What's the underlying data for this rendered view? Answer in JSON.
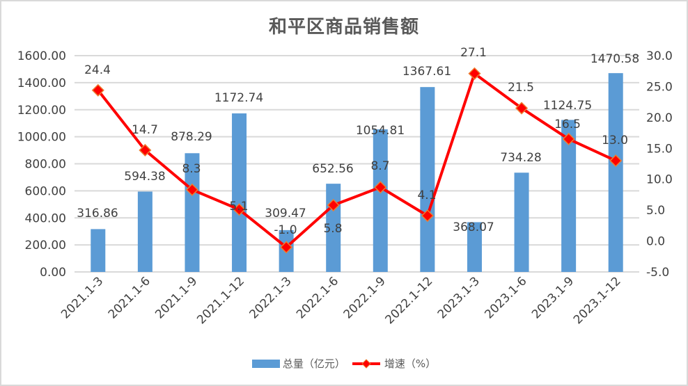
{
  "chart_data": {
    "type": "bar+line",
    "title": "和平区商品销售额",
    "categories": [
      "2021.1-3",
      "2021.1-6",
      "2021.1-9",
      "2021.1-12",
      "2022.1-3",
      "2022.1-6",
      "2022.1-9",
      "2022.1-12",
      "2023.1-3",
      "2023.1-6",
      "2023.1-9",
      "2023.1-12"
    ],
    "series": [
      {
        "name": "总量（亿元）",
        "type": "bar",
        "axis": "left",
        "color": "#5b9bd5",
        "values": [
          316.86,
          594.38,
          878.29,
          1172.74,
          309.47,
          652.56,
          1054.81,
          1367.61,
          368.07,
          734.28,
          1124.75,
          1470.58
        ],
        "labels": [
          "316.86",
          "594.38",
          "878.29",
          "1172.74",
          "309.47",
          "652.56",
          "1054.81",
          "1367.61",
          "368.07",
          "734.28",
          "1124.75",
          "1470.58"
        ]
      },
      {
        "name": "增速（%）",
        "type": "line",
        "axis": "right",
        "color": "#ff0000",
        "marker": "diamond",
        "values": [
          24.4,
          14.7,
          8.3,
          5.1,
          -1.0,
          5.8,
          8.7,
          4.1,
          27.1,
          21.5,
          16.5,
          13.0
        ],
        "labels": [
          "24.4",
          "14.7",
          "8.3",
          "5.1",
          "-1.0",
          "5.8",
          "8.7",
          "4.1",
          "27.1",
          "21.5",
          "16.5",
          "13.0"
        ]
      }
    ],
    "y_left": {
      "ticks": [
        "0.00",
        "200.00",
        "400.00",
        "600.00",
        "800.00",
        "1000.00",
        "1200.00",
        "1400.00",
        "1600.00"
      ],
      "ylim": [
        0,
        1600
      ]
    },
    "y_right": {
      "ticks": [
        "-5.0",
        "0.0",
        "5.0",
        "10.0",
        "15.0",
        "20.0",
        "25.0",
        "30.0"
      ],
      "ylim": [
        -5,
        30
      ]
    },
    "grid": true,
    "legend_position": "bottom"
  },
  "legend": {
    "bar_label": "总量（亿元）",
    "line_label": "增速（%）"
  }
}
